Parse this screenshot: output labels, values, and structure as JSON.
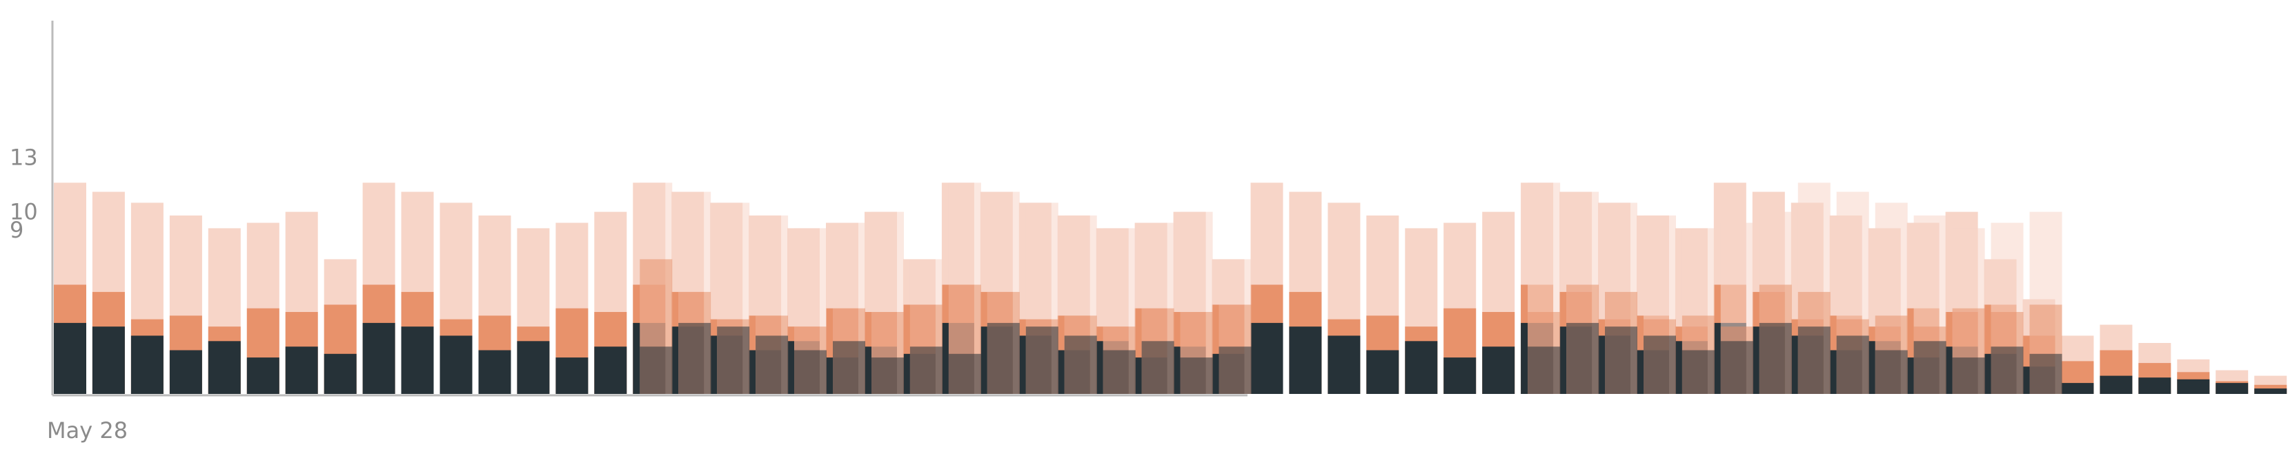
{
  "chart_data": {
    "type": "bar",
    "title": "",
    "xlabel": "",
    "ylabel": "",
    "x_tick_labels": [
      "May 28"
    ],
    "y_tick_values": [
      9,
      10,
      13
    ],
    "ylim": [
      0,
      20.5
    ],
    "grid": false,
    "legend": "none",
    "colors": {
      "series_light": "#f7d5c8",
      "series_mid": "#e8926b",
      "series_dark": "#263238",
      "axis": "#bbbbbb",
      "tick_text": "#8a8a8a"
    },
    "series": [
      {
        "values": [
          11.6,
          11.1,
          10.5,
          9.8,
          9.1,
          9.4,
          10.0,
          7.4,
          11.6,
          11.1,
          10.5,
          9.8,
          9.1,
          9.4,
          10.0,
          11.6,
          11.1,
          10.5,
          9.8,
          9.1,
          9.4,
          10.0,
          7.4,
          11.6,
          11.1,
          10.5,
          9.8,
          9.1,
          9.4,
          10.0,
          7.4,
          11.6,
          11.1,
          10.5,
          9.8,
          9.1,
          9.4,
          10.0,
          11.6,
          11.1,
          10.5,
          9.8,
          9.1,
          11.6,
          11.1,
          10.5,
          9.8,
          9.1,
          9.4,
          10.0,
          7.4,
          5.2,
          3.2,
          3.8,
          2.8,
          1.9,
          1.3,
          1.0
        ]
      },
      {
        "values": [
          6.0,
          5.6,
          4.1,
          4.3,
          3.7,
          4.7,
          4.5,
          4.9,
          6.0,
          5.6,
          4.1,
          4.3,
          3.7,
          4.7,
          4.5,
          6.0,
          5.6,
          4.1,
          4.3,
          3.7,
          4.7,
          4.5,
          4.9,
          6.0,
          5.6,
          4.1,
          4.3,
          3.7,
          4.7,
          4.5,
          4.9,
          6.0,
          5.6,
          4.1,
          4.3,
          3.7,
          4.7,
          4.5,
          6.0,
          5.6,
          4.1,
          4.3,
          3.7,
          6.0,
          5.6,
          4.1,
          4.3,
          3.7,
          4.7,
          4.5,
          4.9,
          3.2,
          1.8,
          2.4,
          1.7,
          1.2,
          0.7,
          0.5
        ]
      },
      {
        "values": [
          3.9,
          3.7,
          3.2,
          2.4,
          2.9,
          2.0,
          2.6,
          2.2,
          3.9,
          3.7,
          3.2,
          2.4,
          2.9,
          2.0,
          2.6,
          3.9,
          3.7,
          3.2,
          2.4,
          2.9,
          2.0,
          2.6,
          2.2,
          3.9,
          3.7,
          3.2,
          2.4,
          2.9,
          2.0,
          2.6,
          2.2,
          3.9,
          3.7,
          3.2,
          2.4,
          2.9,
          2.0,
          2.6,
          3.9,
          3.7,
          3.2,
          2.4,
          2.9,
          3.9,
          3.7,
          3.2,
          2.4,
          2.9,
          2.0,
          2.6,
          2.2,
          1.5,
          0.6,
          1.0,
          0.9,
          0.8,
          0.6,
          0.3
        ]
      }
    ],
    "overlay_series": [
      {
        "start_index": 15,
        "values": [
          11.6,
          11.1,
          10.5,
          9.8,
          9.1,
          9.4,
          10.0,
          7.4,
          11.6,
          11.1,
          10.5,
          9.8,
          9.1,
          9.4,
          10.0,
          7.4
        ]
      },
      {
        "start_index": 15,
        "values": [
          7.4,
          5.6,
          4.1,
          4.3,
          3.7,
          4.7,
          4.5,
          4.9,
          6.0,
          5.6,
          4.1,
          4.3,
          3.7,
          4.7,
          4.5,
          4.9
        ]
      },
      {
        "start_index": 15,
        "values": [
          2.6,
          3.9,
          3.7,
          3.2,
          2.4,
          2.9,
          2.0,
          2.6,
          2.2,
          3.9,
          3.7,
          3.2,
          2.4,
          2.9,
          2.0,
          2.6
        ]
      },
      {
        "start_index": 38,
        "values": [
          11.6,
          11.1,
          10.5,
          9.8,
          9.1,
          9.4,
          10.0,
          11.6,
          11.1,
          10.5,
          9.8,
          9.1,
          9.4,
          10.0
        ]
      },
      {
        "start_index": 38,
        "values": [
          4.5,
          6.0,
          5.6,
          4.1,
          4.3,
          3.7,
          6.0,
          5.6,
          4.1,
          4.3,
          3.7,
          4.7,
          4.5,
          4.9
        ]
      },
      {
        "start_index": 38,
        "values": [
          2.6,
          3.9,
          3.7,
          3.2,
          2.4,
          2.9,
          3.9,
          3.7,
          3.2,
          2.4,
          2.9,
          2.0,
          2.6,
          2.2
        ]
      }
    ]
  }
}
